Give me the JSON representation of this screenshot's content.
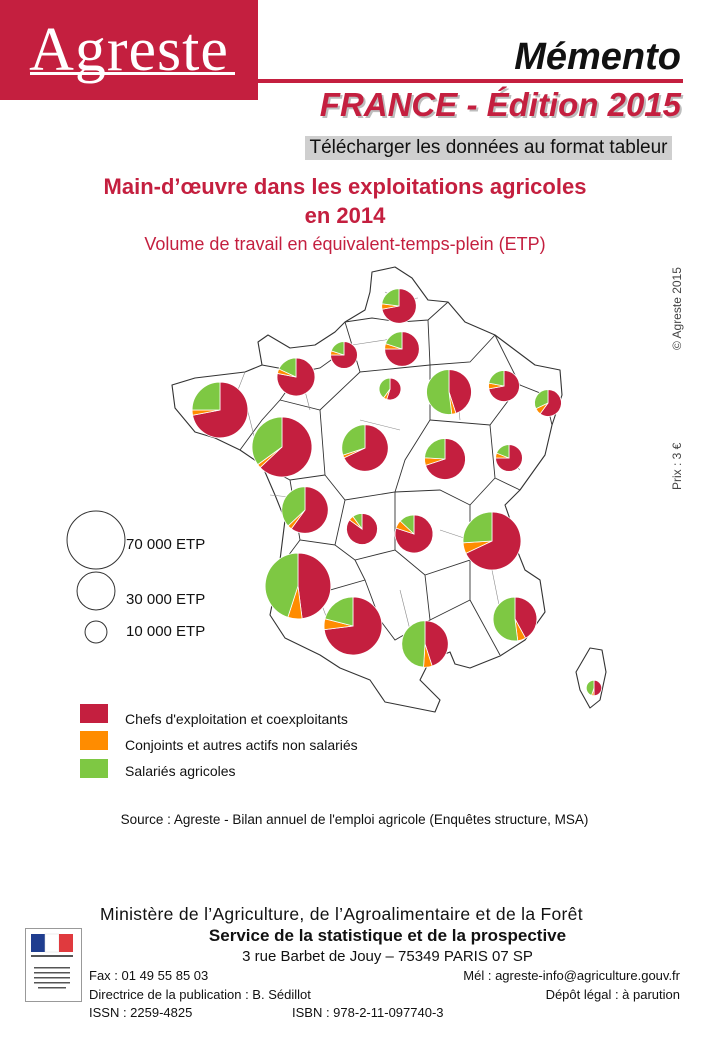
{
  "header": {
    "logo": "Agreste",
    "memento": "Mémento",
    "edition_prefix": "FRANCE - ",
    "edition_year": "Édition 2015",
    "download_link": "Télécharger les données au format tableur"
  },
  "title_line1": "Main-d’œuvre dans les exploitations agricoles",
  "title_line2": "en 2014",
  "subtitle": "Volume de travail en équivalent-temps-plein (ETP)",
  "side": {
    "copyright": "© Agreste 2015",
    "price": "Prix : 3 €"
  },
  "size_legend": [
    {
      "label": "70 000 ETP",
      "value": 70000
    },
    {
      "label": "30 000 ETP",
      "value": 30000
    },
    {
      "label": "10 000 ETP",
      "value": 10000
    }
  ],
  "categories": [
    {
      "label": "Chefs d'exploitation et coexploitants",
      "color": "#c41f3f"
    },
    {
      "label": "Conjoints et autres actifs non salariés",
      "color": "#ff8c00"
    },
    {
      "label": "Salariés agricoles",
      "color": "#7ec843"
    }
  ],
  "regions_data": [
    {
      "region": "Nord-Pas-de-Calais",
      "total": 25000,
      "shares": [
        0.72,
        0.05,
        0.23
      ]
    },
    {
      "region": "Picardie",
      "total": 25000,
      "shares": [
        0.75,
        0.05,
        0.2
      ]
    },
    {
      "region": "Haute-Normandie",
      "total": 15000,
      "shares": [
        0.75,
        0.05,
        0.2
      ]
    },
    {
      "region": "Île-de-France",
      "total": 10000,
      "shares": [
        0.55,
        0.05,
        0.4
      ]
    },
    {
      "region": "Champagne-Ardenne",
      "total": 42000,
      "shares": [
        0.45,
        0.03,
        0.52
      ]
    },
    {
      "region": "Lorraine",
      "total": 20000,
      "shares": [
        0.72,
        0.06,
        0.22
      ]
    },
    {
      "region": "Alsace",
      "total": 15000,
      "shares": [
        0.6,
        0.08,
        0.32
      ]
    },
    {
      "region": "Basse-Normandie",
      "total": 30000,
      "shares": [
        0.78,
        0.04,
        0.18
      ]
    },
    {
      "region": "Bretagne",
      "total": 65000,
      "shares": [
        0.72,
        0.03,
        0.25
      ]
    },
    {
      "region": "Pays de la Loire",
      "total": 75000,
      "shares": [
        0.63,
        0.02,
        0.35
      ]
    },
    {
      "region": "Centre",
      "total": 45000,
      "shares": [
        0.68,
        0.02,
        0.3
      ]
    },
    {
      "region": "Bourgogne",
      "total": 35000,
      "shares": [
        0.7,
        0.06,
        0.24
      ]
    },
    {
      "region": "Franche-Comté",
      "total": 15000,
      "shares": [
        0.75,
        0.06,
        0.19
      ]
    },
    {
      "region": "Poitou-Charentes",
      "total": 45000,
      "shares": [
        0.6,
        0.03,
        0.37
      ]
    },
    {
      "region": "Limousin",
      "total": 20000,
      "shares": [
        0.85,
        0.05,
        0.1
      ]
    },
    {
      "region": "Auvergne",
      "total": 30000,
      "shares": [
        0.8,
        0.07,
        0.13
      ]
    },
    {
      "region": "Rhône-Alpes",
      "total": 70000,
      "shares": [
        0.68,
        0.06,
        0.26
      ]
    },
    {
      "region": "Aquitaine",
      "total": 90000,
      "shares": [
        0.48,
        0.07,
        0.45
      ]
    },
    {
      "region": "Midi-Pyrénées",
      "total": 70000,
      "shares": [
        0.73,
        0.06,
        0.21
      ]
    },
    {
      "region": "Languedoc-Roussillon",
      "total": 45000,
      "shares": [
        0.45,
        0.06,
        0.49
      ]
    },
    {
      "region": "Provence-Alpes-Côte d'Azur",
      "total": 40000,
      "shares": [
        0.42,
        0.06,
        0.52
      ]
    },
    {
      "region": "Corse",
      "total": 5000,
      "shares": [
        0.5,
        0.05,
        0.45
      ]
    }
  ],
  "source": "Source : Agreste - Bilan annuel de l'emploi agricole (Enquêtes structure, MSA)",
  "footer": {
    "ministry": "Ministère de l’Agriculture, de l’Agroalimentaire et de la Forêt",
    "service": "Service de la statistique et de la prospective",
    "address": "3 rue Barbet de Jouy – 75349 PARIS 07 SP",
    "fax": "Fax : 01 49 55 85 03",
    "mail": "Mél : agreste-info@agriculture.gouv.fr",
    "director": "Directrice de la publication : B. Sédillot",
    "legal": "Dépôt légal : à parution",
    "issn": "ISSN : 2259-4825",
    "isbn": "ISBN : 978-2-11-097740-3"
  }
}
